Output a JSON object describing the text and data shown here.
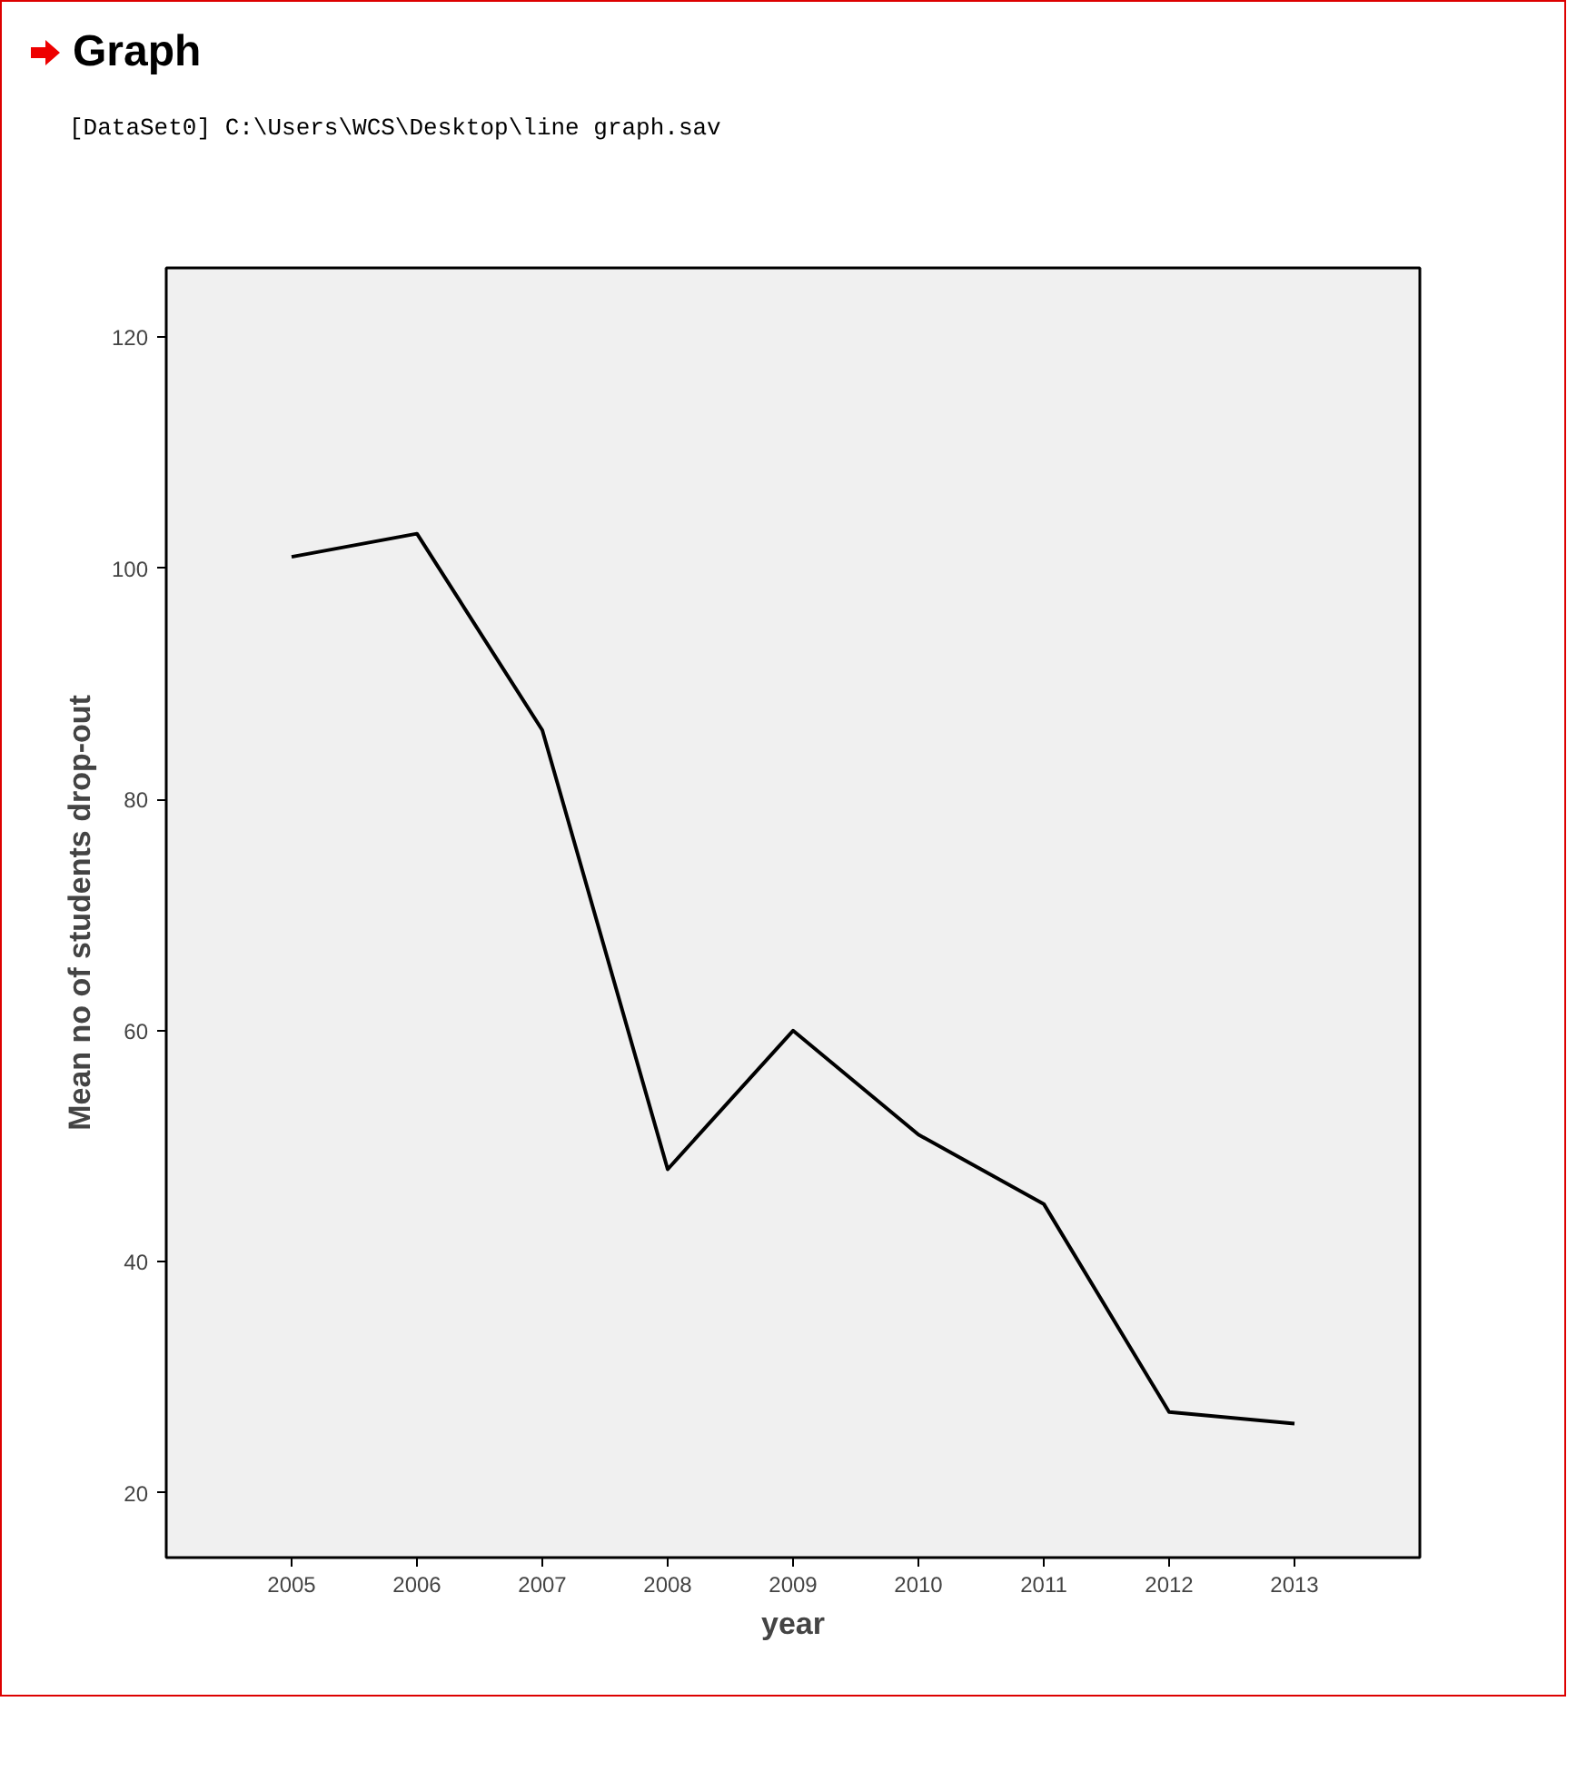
{
  "chart_data": {
    "type": "line",
    "title": "Graph",
    "annotations": [
      "[DataSet0] C:\\Users\\WCS\\Desktop\\line graph.sav"
    ],
    "xlabel": "year",
    "ylabel": "Mean no of students drop-out",
    "categories": [
      "2005",
      "2006",
      "2007",
      "2008",
      "2009",
      "2010",
      "2011",
      "2012",
      "2013"
    ],
    "series": [
      {
        "color": "#000000",
        "values": [
          101,
          103,
          86,
          48,
          60,
          51,
          45,
          27,
          26
        ]
      }
    ],
    "ylim": [
      14.4,
      126
    ],
    "yticks": [
      20,
      40,
      60,
      80,
      100,
      120
    ]
  }
}
